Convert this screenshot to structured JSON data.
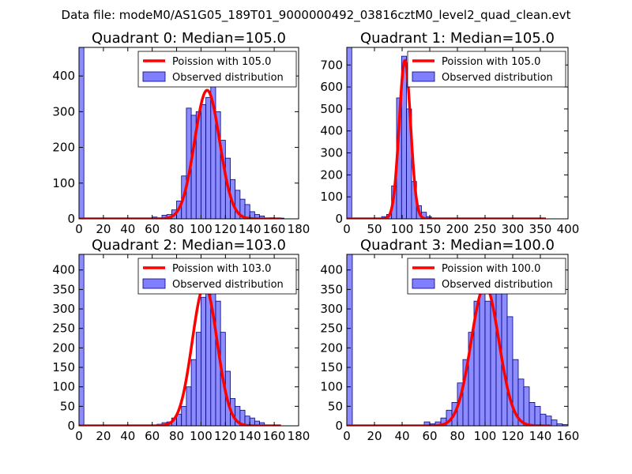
{
  "suptitle": "Data file: modeM0/AS1G05_189T01_9000000492_03816cztM0_level2_quad_clean.evt",
  "legend_labels": {
    "poisson_prefix": "Poission with ",
    "observed": "Observed distribution"
  },
  "colors": {
    "line": "#ff0000",
    "bar_fill": "#8080ff",
    "bar_edge": "#000080",
    "axis": "#000000"
  },
  "chart_data": [
    {
      "type": "bar",
      "title": "Quadrant 0: Median=105.0",
      "poisson_label": "Poission with 105.0",
      "mean": 105.0,
      "xlim": [
        0,
        180
      ],
      "ylim": [
        0,
        480
      ],
      "xticks": [
        0,
        20,
        40,
        60,
        80,
        100,
        120,
        140,
        160,
        180
      ],
      "yticks": [
        0,
        100,
        200,
        300,
        400
      ],
      "bin_width": 4,
      "bin_starts": [
        0,
        60,
        68,
        72,
        76,
        80,
        84,
        88,
        92,
        96,
        100,
        104,
        108,
        112,
        116,
        120,
        124,
        128,
        132,
        136,
        140,
        144,
        148,
        156,
        164
      ],
      "values": [
        480,
        5,
        10,
        12,
        25,
        50,
        120,
        310,
        290,
        300,
        320,
        340,
        370,
        300,
        220,
        170,
        110,
        80,
        55,
        40,
        20,
        12,
        8,
        3,
        2
      ],
      "curve_peak": 360
    },
    {
      "type": "bar",
      "title": "Quadrant 1: Median=105.0",
      "poisson_label": "Poission with 105.0",
      "mean": 105.0,
      "xlim": [
        0,
        400
      ],
      "ylim": [
        0,
        780
      ],
      "xticks": [
        0,
        50,
        100,
        150,
        200,
        250,
        300,
        350,
        400
      ],
      "yticks": [
        0,
        100,
        200,
        300,
        400,
        500,
        600,
        700
      ],
      "bin_width": 9,
      "bin_starts": [
        0,
        63,
        72,
        81,
        90,
        99,
        108,
        117,
        126,
        135,
        144,
        153
      ],
      "values": [
        780,
        10,
        20,
        150,
        550,
        740,
        500,
        170,
        60,
        30,
        10,
        4
      ],
      "curve_peak": 720,
      "curve_xmax": 360
    },
    {
      "type": "bar",
      "title": "Quadrant 2: Median=103.0",
      "poisson_label": "Poission with 103.0",
      "mean": 103.0,
      "xlim": [
        0,
        180
      ],
      "ylim": [
        0,
        440
      ],
      "xticks": [
        0,
        20,
        40,
        60,
        80,
        100,
        120,
        140,
        160,
        180
      ],
      "yticks": [
        0,
        50,
        100,
        150,
        200,
        250,
        300,
        350,
        400
      ],
      "bin_width": 4,
      "bin_starts": [
        0,
        64,
        68,
        72,
        76,
        80,
        84,
        88,
        92,
        96,
        100,
        104,
        108,
        112,
        116,
        120,
        124,
        128,
        132,
        136,
        140,
        144,
        148,
        152,
        160
      ],
      "values": [
        440,
        4,
        8,
        10,
        20,
        30,
        50,
        100,
        170,
        240,
        330,
        360,
        380,
        320,
        240,
        140,
        70,
        50,
        40,
        25,
        20,
        12,
        8,
        2,
        2
      ],
      "curve_peak": 360
    },
    {
      "type": "bar",
      "title": "Quadrant 3: Median=100.0",
      "poisson_label": "Poission with 100.0",
      "mean": 100.0,
      "xlim": [
        0,
        160
      ],
      "ylim": [
        0,
        440
      ],
      "xticks": [
        0,
        20,
        40,
        60,
        80,
        100,
        120,
        140,
        160
      ],
      "yticks": [
        0,
        50,
        100,
        150,
        200,
        250,
        300,
        350,
        400
      ],
      "bin_width": 4,
      "bin_starts": [
        0,
        56,
        60,
        64,
        68,
        72,
        76,
        80,
        84,
        88,
        92,
        96,
        100,
        104,
        108,
        112,
        116,
        120,
        124,
        128,
        132,
        136,
        140,
        144,
        148,
        152,
        156
      ],
      "values": [
        440,
        10,
        5,
        10,
        20,
        40,
        60,
        110,
        170,
        240,
        320,
        380,
        320,
        340,
        410,
        380,
        280,
        170,
        120,
        100,
        60,
        50,
        30,
        25,
        15,
        5,
        3
      ],
      "curve_peak": 360
    }
  ]
}
